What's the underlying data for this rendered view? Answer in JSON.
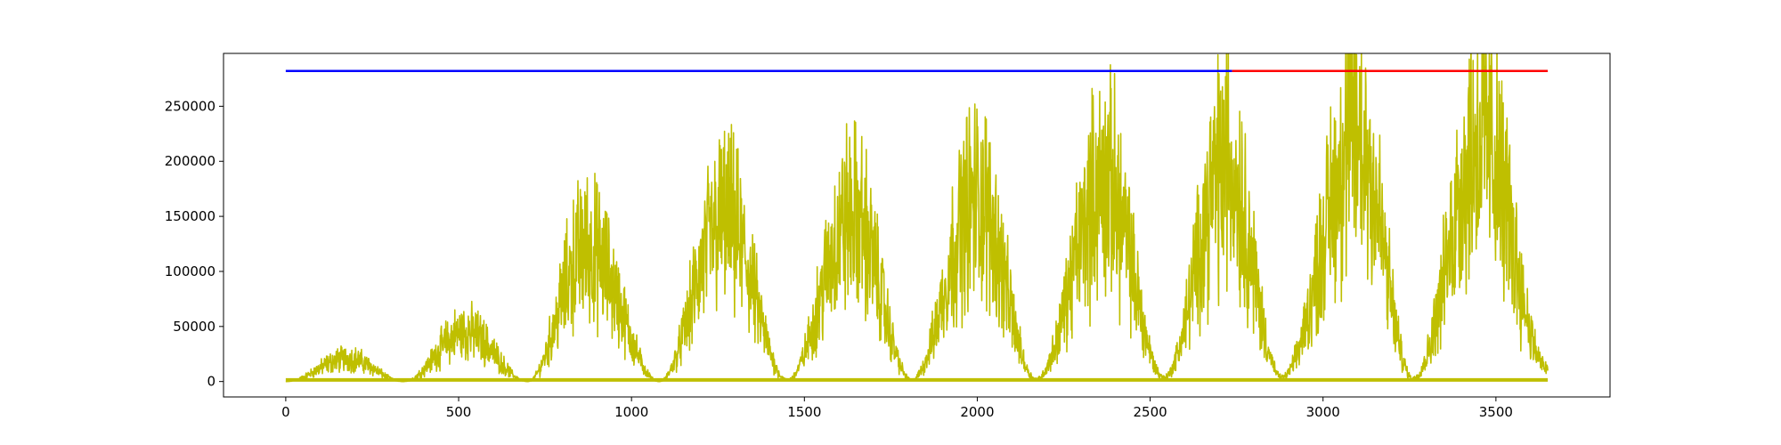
{
  "chart_data": {
    "type": "line",
    "title": "",
    "xlabel": "",
    "ylabel": "",
    "xlim": [
      -180,
      3830
    ],
    "ylim": [
      -14000,
      298000
    ],
    "grid": false,
    "legend": "none",
    "x_ticks": [
      0,
      500,
      1000,
      1500,
      2000,
      2500,
      3000,
      3500
    ],
    "x_tick_labels": [
      "0",
      "500",
      "1000",
      "1500",
      "2000",
      "2500",
      "3000",
      "3500"
    ],
    "y_ticks": [
      0,
      50000,
      100000,
      150000,
      200000,
      250000
    ],
    "y_tick_labels": [
      "0",
      "50000",
      "100000",
      "150000",
      "200000",
      "250000"
    ],
    "series": [
      {
        "color": "#bfbf00",
        "description": "daily values, seasonal yearly pattern",
        "x_range": [
          0,
          3650
        ],
        "peaks": [
          {
            "x": 180,
            "y": 27000
          },
          {
            "x": 520,
            "y": 58000
          },
          {
            "x": 870,
            "y": 155000
          },
          {
            "x": 1270,
            "y": 187000
          },
          {
            "x": 1640,
            "y": 192000
          },
          {
            "x": 2000,
            "y": 212000
          },
          {
            "x": 2370,
            "y": 230000
          },
          {
            "x": 2720,
            "y": 252000
          },
          {
            "x": 3100,
            "y": 282000
          },
          {
            "x": 3460,
            "y": 283000
          }
        ],
        "troughs": [
          {
            "x": 0,
            "y": 0
          },
          {
            "x": 340,
            "y": 0
          },
          {
            "x": 700,
            "y": 0
          },
          {
            "x": 1080,
            "y": 0
          },
          {
            "x": 1450,
            "y": 2000
          },
          {
            "x": 1810,
            "y": 2000
          },
          {
            "x": 2170,
            "y": 3000
          },
          {
            "x": 2540,
            "y": 5000
          },
          {
            "x": 2880,
            "y": 5000
          },
          {
            "x": 3260,
            "y": 4000
          },
          {
            "x": 3650,
            "y": 15000
          }
        ]
      },
      {
        "color": "#bfbf00",
        "description": "near-zero baseline",
        "x": [
          0,
          3650
        ],
        "y": [
          1500,
          1500
        ]
      },
      {
        "color": "#0000ff",
        "x": [
          0,
          2737
        ],
        "y": [
          282000,
          282000
        ]
      },
      {
        "color": "#ff0000",
        "x": [
          2737,
          3650
        ],
        "y": [
          282000,
          282000
        ]
      }
    ]
  }
}
